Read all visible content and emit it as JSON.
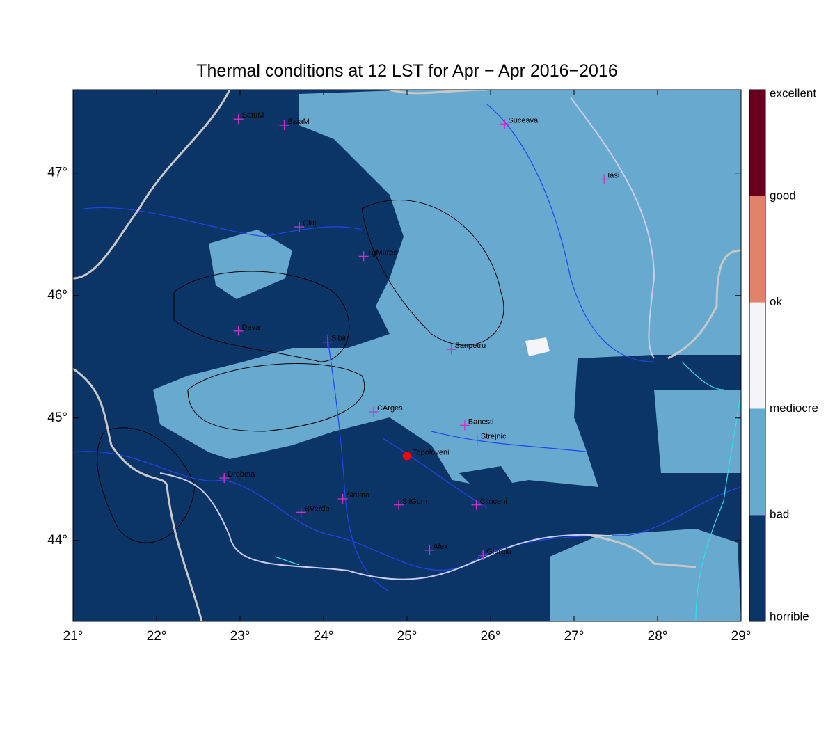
{
  "chart_data": {
    "type": "map",
    "title": "Thermal conditions at 12 LST for Apr − Apr  2016−2016",
    "xlim": [
      21,
      29
    ],
    "ylim": [
      43.34,
      47.68
    ],
    "xticks": [
      {
        "value": 21,
        "label": "21°"
      },
      {
        "value": 22,
        "label": "22°"
      },
      {
        "value": 23,
        "label": "23°"
      },
      {
        "value": 24,
        "label": "24°"
      },
      {
        "value": 25,
        "label": "25°"
      },
      {
        "value": 26,
        "label": "26°"
      },
      {
        "value": 27,
        "label": "27°"
      },
      {
        "value": 28,
        "label": "28°"
      },
      {
        "value": 29,
        "label": "29°"
      }
    ],
    "yticks": [
      {
        "value": 44,
        "label": "44°"
      },
      {
        "value": 45,
        "label": "45°"
      },
      {
        "value": 46,
        "label": "46°"
      },
      {
        "value": 47,
        "label": "47°"
      }
    ],
    "cities": [
      {
        "name": "SatuM",
        "lon": 22.98,
        "lat": 47.44
      },
      {
        "name": "BaiaM",
        "lon": 23.53,
        "lat": 47.39
      },
      {
        "name": "Suceava",
        "lon": 26.17,
        "lat": 47.4
      },
      {
        "name": "Iasi",
        "lon": 27.36,
        "lat": 46.95
      },
      {
        "name": "Cluj",
        "lon": 23.71,
        "lat": 46.56
      },
      {
        "name": "TgMures",
        "lon": 24.48,
        "lat": 46.32
      },
      {
        "name": "Deva",
        "lon": 22.98,
        "lat": 45.71
      },
      {
        "name": "Sibiu",
        "lon": 24.05,
        "lat": 45.62
      },
      {
        "name": "Sanpetru",
        "lon": 25.53,
        "lat": 45.56
      },
      {
        "name": "CArges",
        "lon": 24.6,
        "lat": 45.05
      },
      {
        "name": "Banesti",
        "lon": 25.69,
        "lat": 44.94
      },
      {
        "name": "Strejnic",
        "lon": 25.84,
        "lat": 44.82
      },
      {
        "name": "Drobeta",
        "lon": 22.81,
        "lat": 44.51
      },
      {
        "name": "Slatina",
        "lon": 24.23,
        "lat": 44.34
      },
      {
        "name": "SilGum",
        "lon": 24.9,
        "lat": 44.29
      },
      {
        "name": "BVerde",
        "lon": 23.73,
        "lat": 44.23
      },
      {
        "name": "Clinceni",
        "lon": 25.83,
        "lat": 44.29
      },
      {
        "name": "Alex",
        "lon": 25.27,
        "lat": 43.92
      },
      {
        "name": "Giurgiu",
        "lon": 25.91,
        "lat": 43.88
      }
    ],
    "highlight": {
      "name": "Topoloveni",
      "lon": 25.0,
      "lat": 44.69,
      "color": "#ff0000"
    },
    "city_color": "#cc33cc",
    "colorbar": {
      "labels": [
        "horrible",
        "bad",
        "mediocre",
        "ok",
        "good",
        "excellent"
      ],
      "colors": [
        "#0b3467",
        "#67a9cf",
        "#f5f5f7",
        "#e0836a",
        "#67001f"
      ]
    }
  }
}
